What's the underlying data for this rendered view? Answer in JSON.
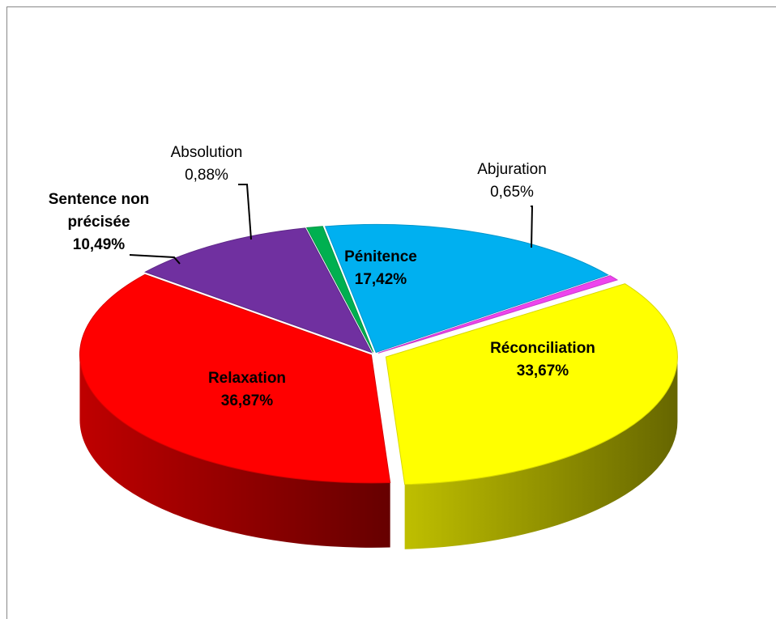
{
  "chart_data": {
    "type": "pie",
    "categories": [
      "Pénitence",
      "Abjuration",
      "Réconciliation",
      "Relaxation",
      "Sentence non précisée",
      "Absolution"
    ],
    "values": [
      17.42,
      0.65,
      33.67,
      36.87,
      10.49,
      0.88
    ],
    "value_labels": [
      "17,42%",
      "0,65%",
      "33,67%",
      "36,87%",
      "10,49%",
      "0,88%"
    ],
    "colors": [
      "#00b0f0",
      "#ee44ee",
      "#ffff00",
      "#ff0000",
      "#7030a0",
      "#00b050"
    ]
  }
}
